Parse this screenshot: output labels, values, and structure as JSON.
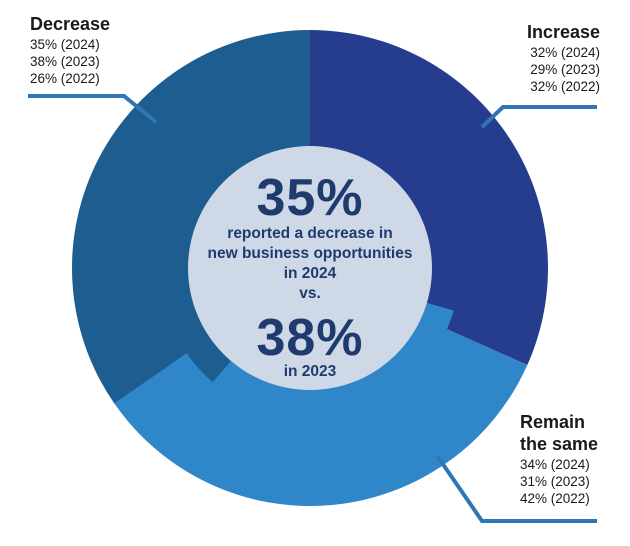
{
  "chart_data": {
    "type": "pie",
    "variant": "nested-donut",
    "categories": [
      "Increase",
      "Remain the same",
      "Decrease"
    ],
    "series": [
      {
        "name": "2024",
        "values": [
          32,
          34,
          35
        ]
      },
      {
        "name": "2023",
        "values": [
          29,
          31,
          38
        ]
      },
      {
        "name": "2022",
        "values": [
          32,
          42,
          26
        ]
      }
    ],
    "colors": {
      "Increase": "#253d8c",
      "Remain the same": "#2f86c8",
      "Decrease": "#1e5d90"
    },
    "center_color": "#cfd8e6",
    "center_text_color": "#1f3b6e",
    "leader_line_color": "#2f76b5"
  },
  "labels": {
    "decrease": {
      "title": "Decrease",
      "lines": [
        "35% (2024)",
        "38% (2023)",
        "26% (2022)"
      ]
    },
    "increase": {
      "title": "Increase",
      "lines": [
        "32% (2024)",
        "29% (2023)",
        "32% (2022)"
      ]
    },
    "remain": {
      "title_line1": "Remain",
      "title_line2": "the same",
      "lines": [
        "34% (2024)",
        "31% (2023)",
        "42% (2022)"
      ]
    }
  },
  "center": {
    "big1": "35%",
    "text1_line1": "reported a decrease in",
    "text1_line2": "new business opportunities",
    "text1_line3": "in 2024",
    "vs": "vs.",
    "big2": "38%",
    "text2": "in 2023"
  }
}
